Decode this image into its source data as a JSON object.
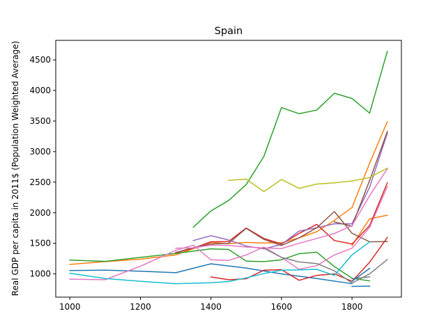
{
  "chart_data": {
    "type": "line",
    "title": "Spain",
    "xlabel": "",
    "ylabel": "Real GDP per capita in 2011$ (Population Weighted Average)",
    "xlim": [
      960,
      1940
    ],
    "ylim": [
      620,
      4820
    ],
    "xticks": [
      1000,
      1200,
      1400,
      1600,
      1800
    ],
    "yticks": [
      1000,
      1500,
      2000,
      2500,
      3000,
      3500,
      4000,
      4500
    ],
    "grid": false,
    "legend": "none",
    "series": [
      {
        "color": "#1f77b4",
        "points": [
          [
            1000,
            1055
          ],
          [
            1100,
            1060
          ],
          [
            1200,
            1045
          ],
          [
            1300,
            1020
          ],
          [
            1400,
            1165
          ],
          [
            1500,
            1095
          ],
          [
            1600,
            1000
          ],
          [
            1700,
            925
          ],
          [
            1800,
            840
          ]
        ]
      },
      {
        "color": "#1f77b4",
        "points": [
          [
            1800,
            795
          ],
          [
            1850,
            800
          ]
        ]
      },
      {
        "color": "#ff7f0e",
        "points": [
          [
            1000,
            1155
          ],
          [
            1100,
            1200
          ],
          [
            1200,
            1240
          ],
          [
            1300,
            1310
          ],
          [
            1400,
            1515
          ],
          [
            1450,
            1495
          ],
          [
            1500,
            1515
          ],
          [
            1550,
            1505
          ],
          [
            1600,
            1510
          ],
          [
            1650,
            1590
          ],
          [
            1700,
            1690
          ],
          [
            1750,
            1875
          ],
          [
            1800,
            2085
          ],
          [
            1850,
            2810
          ],
          [
            1900,
            3490
          ]
        ]
      },
      {
        "color": "#ff7f0e",
        "points": [
          [
            1800,
            1465
          ],
          [
            1850,
            1900
          ],
          [
            1900,
            1960
          ]
        ]
      },
      {
        "color": "#2ca02c",
        "points": [
          [
            1000,
            1225
          ],
          [
            1100,
            1205
          ],
          [
            1200,
            1270
          ],
          [
            1300,
            1335
          ],
          [
            1400,
            1410
          ],
          [
            1450,
            1400
          ],
          [
            1500,
            1210
          ],
          [
            1550,
            1200
          ],
          [
            1600,
            1230
          ],
          [
            1650,
            1330
          ],
          [
            1700,
            1355
          ],
          [
            1750,
            1120
          ],
          [
            1800,
            930
          ],
          [
            1850,
            885
          ]
        ]
      },
      {
        "color": "#2ca02c",
        "points": [
          [
            1350,
            1765
          ],
          [
            1400,
            2030
          ],
          [
            1450,
            2200
          ],
          [
            1500,
            2460
          ],
          [
            1550,
            2920
          ],
          [
            1600,
            3720
          ],
          [
            1650,
            3620
          ],
          [
            1700,
            3680
          ],
          [
            1750,
            3955
          ],
          [
            1800,
            3870
          ],
          [
            1850,
            3630
          ],
          [
            1900,
            4640
          ]
        ]
      },
      {
        "color": "#d62728",
        "points": [
          [
            1300,
            1345
          ],
          [
            1350,
            1420
          ],
          [
            1400,
            1525
          ],
          [
            1450,
            1530
          ],
          [
            1500,
            1750
          ],
          [
            1550,
            1580
          ],
          [
            1600,
            1490
          ],
          [
            1650,
            1660
          ],
          [
            1700,
            1810
          ],
          [
            1750,
            1545
          ],
          [
            1800,
            1490
          ],
          [
            1850,
            1790
          ],
          [
            1900,
            2490
          ]
        ]
      },
      {
        "color": "#d62728",
        "points": [
          [
            1400,
            950
          ],
          [
            1450,
            905
          ],
          [
            1500,
            920
          ],
          [
            1550,
            1060
          ],
          [
            1600,
            1070
          ],
          [
            1650,
            895
          ],
          [
            1700,
            975
          ],
          [
            1750,
            1000
          ],
          [
            1800,
            880
          ],
          [
            1850,
            1190
          ],
          [
            1900,
            1595
          ]
        ]
      },
      {
        "color": "#9467bd",
        "points": [
          [
            1350,
            1545
          ],
          [
            1400,
            1625
          ],
          [
            1450,
            1555
          ],
          [
            1500,
            1455
          ],
          [
            1550,
            1410
          ],
          [
            1600,
            1480
          ],
          [
            1650,
            1700
          ],
          [
            1700,
            1755
          ],
          [
            1750,
            1820
          ],
          [
            1800,
            1820
          ],
          [
            1850,
            2420
          ],
          [
            1900,
            3300
          ]
        ]
      },
      {
        "color": "#8c564b",
        "points": [
          [
            1300,
            1350
          ],
          [
            1350,
            1430
          ],
          [
            1400,
            1490
          ],
          [
            1450,
            1500
          ],
          [
            1500,
            1745
          ],
          [
            1550,
            1565
          ],
          [
            1600,
            1465
          ],
          [
            1650,
            1590
          ],
          [
            1700,
            1755
          ],
          [
            1750,
            2020
          ],
          [
            1800,
            1665
          ],
          [
            1850,
            1525
          ],
          [
            1900,
            1530
          ]
        ]
      },
      {
        "color": "#8c564b",
        "points": [
          [
            1750,
            1850
          ],
          [
            1800,
            1780
          ],
          [
            1850,
            2530
          ],
          [
            1900,
            3330
          ]
        ]
      },
      {
        "color": "#e377c2",
        "points": [
          [
            1000,
            915
          ],
          [
            1100,
            905
          ],
          [
            1200,
            1125
          ],
          [
            1300,
            1385
          ],
          [
            1350,
            1470
          ],
          [
            1400,
            1230
          ],
          [
            1450,
            1220
          ],
          [
            1500,
            1310
          ],
          [
            1550,
            1440
          ],
          [
            1600,
            1270
          ],
          [
            1650,
            1075
          ],
          [
            1700,
            1135
          ],
          [
            1750,
            1310
          ],
          [
            1800,
            1420
          ],
          [
            1850,
            1760
          ],
          [
            1900,
            2430
          ]
        ]
      },
      {
        "color": "#e377c2",
        "points": [
          [
            1300,
            1420
          ],
          [
            1350,
            1425
          ],
          [
            1400,
            1470
          ],
          [
            1450,
            1465
          ],
          [
            1500,
            1440
          ],
          [
            1550,
            1425
          ],
          [
            1600,
            1415
          ],
          [
            1650,
            1500
          ],
          [
            1700,
            1580
          ],
          [
            1750,
            1660
          ],
          [
            1800,
            1790
          ],
          [
            1850,
            2280
          ],
          [
            1900,
            2720
          ]
        ]
      },
      {
        "color": "#7f7f7f",
        "points": [
          [
            1550,
            1420
          ],
          [
            1600,
            1270
          ],
          [
            1650,
            1195
          ],
          [
            1700,
            1170
          ],
          [
            1750,
            1050
          ],
          [
            1800,
            850
          ],
          [
            1850,
            1000
          ],
          [
            1900,
            1235
          ]
        ]
      },
      {
        "color": "#7f7f7f",
        "points": [
          [
            1800,
            920
          ],
          [
            1850,
            950
          ]
        ]
      },
      {
        "color": "#bcbd22",
        "points": [
          [
            1450,
            2530
          ],
          [
            1500,
            2550
          ],
          [
            1550,
            2345
          ],
          [
            1600,
            2545
          ],
          [
            1650,
            2400
          ],
          [
            1700,
            2470
          ],
          [
            1750,
            2490
          ],
          [
            1800,
            2520
          ],
          [
            1850,
            2575
          ],
          [
            1900,
            2730
          ]
        ]
      },
      {
        "color": "#17becf",
        "points": [
          [
            1000,
            1010
          ],
          [
            1100,
            925
          ],
          [
            1200,
            880
          ],
          [
            1300,
            840
          ],
          [
            1400,
            855
          ],
          [
            1450,
            875
          ],
          [
            1500,
            935
          ],
          [
            1550,
            1005
          ],
          [
            1600,
            1060
          ],
          [
            1650,
            1065
          ],
          [
            1700,
            1075
          ],
          [
            1750,
            975
          ],
          [
            1800,
            1310
          ],
          [
            1850,
            1525
          ]
        ]
      },
      {
        "color": "#1f77b4",
        "points": [
          [
            1800,
            880
          ],
          [
            1850,
            1090
          ]
        ]
      }
    ]
  }
}
